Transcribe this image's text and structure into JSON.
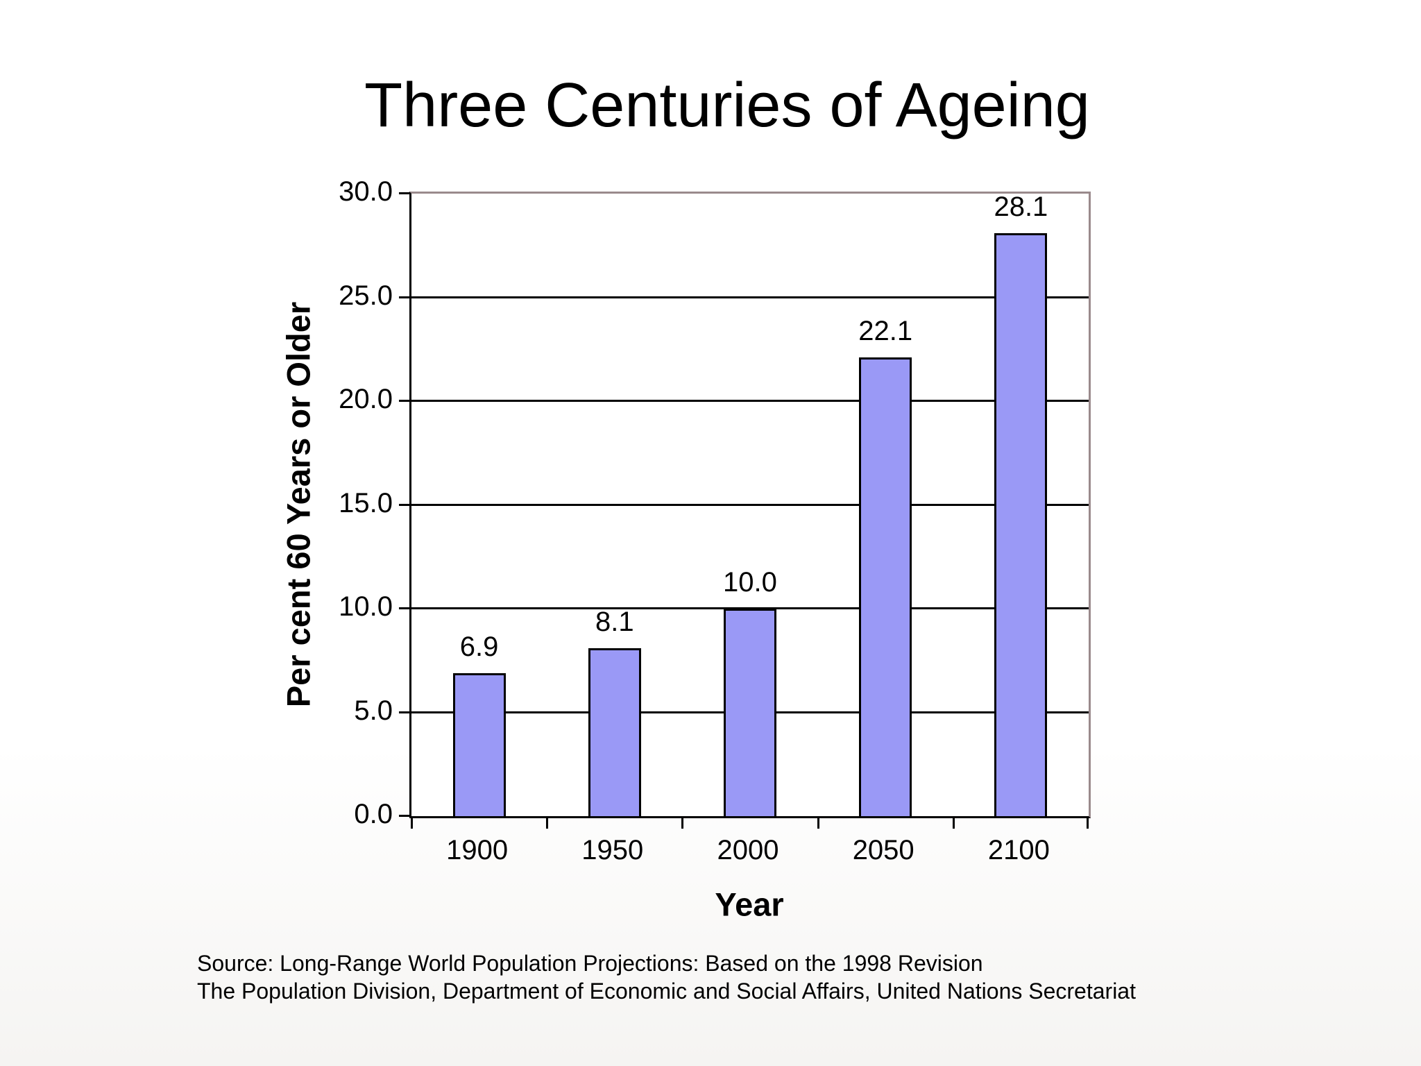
{
  "slide": {
    "source_lines": [
      "Source: Long-Range World Population Projections: Based on the 1998 Revision",
      "The Population Division, Department of Economic and Social Affairs, United Nations Secretariat"
    ]
  },
  "chart_data": {
    "type": "bar",
    "title": "Three Centuries of Ageing",
    "categories": [
      "1900",
      "1950",
      "2000",
      "2050",
      "2100"
    ],
    "values": [
      6.9,
      8.1,
      10.0,
      22.1,
      28.1
    ],
    "data_labels": [
      "6.9",
      "8.1",
      "10.0",
      "22.1",
      "28.1"
    ],
    "xlabel": "Year",
    "ylabel": "Per cent 60 Years or Older",
    "ylim": [
      0,
      30
    ],
    "ytick_step": 5,
    "ytick_labels": [
      "0.0",
      "5.0",
      "10.0",
      "15.0",
      "20.0",
      "25.0",
      "30.0"
    ],
    "grid": true,
    "legend": false,
    "colors": {
      "bar_fill": "#9a99f6",
      "bar_border": "#000000",
      "plot_border": "#9a8a8c",
      "gridline": "#000000",
      "text": "#000000"
    }
  }
}
